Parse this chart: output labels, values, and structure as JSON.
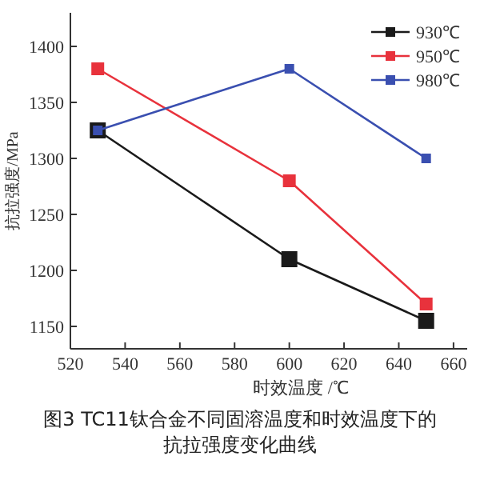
{
  "chart_data": {
    "type": "line",
    "title": "图3 TC11钛合金不同固溶温度和时效温度下的抗拉强度变化曲线",
    "xlabel": "时效温度 /℃",
    "ylabel": "抗拉强度/MPa",
    "x": [
      530,
      600,
      650
    ],
    "series": [
      {
        "name": "930℃",
        "color": "#1a1a1a",
        "values": [
          1325,
          1210,
          1155
        ]
      },
      {
        "name": "950℃",
        "color": "#e8323c",
        "values": [
          1380,
          1280,
          1170
        ]
      },
      {
        "name": "980℃",
        "color": "#3a4fb0",
        "values": [
          1325,
          1380,
          1300
        ]
      }
    ],
    "xlim": [
      520,
      665
    ],
    "xticks": [
      520,
      540,
      560,
      580,
      600,
      620,
      640,
      660
    ],
    "ylim": [
      1130,
      1430
    ],
    "yticks": [
      1150,
      1200,
      1250,
      1300,
      1350,
      1400
    ],
    "marker": "square",
    "line_style": "solid",
    "legend": "top right",
    "grid": false
  }
}
